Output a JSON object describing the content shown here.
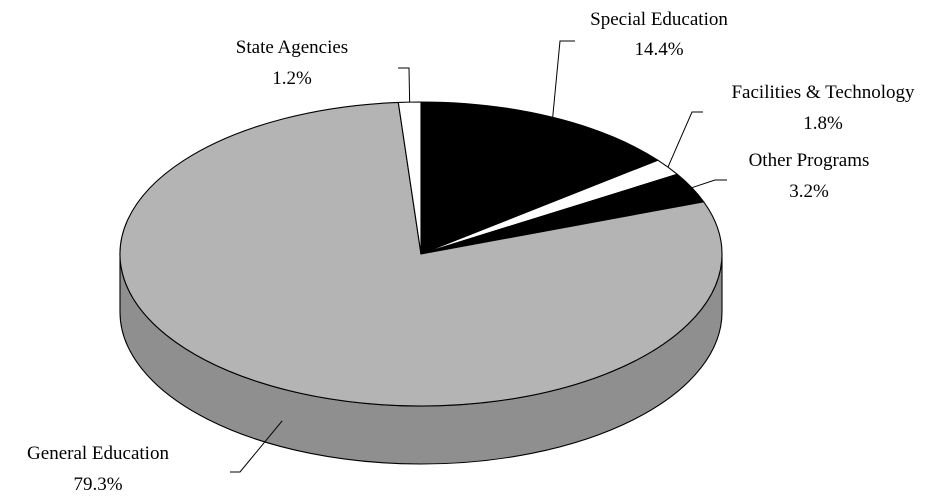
{
  "chart_data": {
    "type": "pie",
    "style": "3d",
    "title": "",
    "slices": [
      {
        "label": "Special Education",
        "value": 14.4,
        "value_label": "14.4%",
        "color": "#000000"
      },
      {
        "label": "Facilities & Technology",
        "value": 1.8,
        "value_label": "1.8%",
        "color": "#ffffff"
      },
      {
        "label": "Other Programs",
        "value": 3.2,
        "value_label": "3.2%",
        "color": "#000000"
      },
      {
        "label": "General Education",
        "value": 79.3,
        "value_label": "79.3%",
        "color": "#b4b4b4"
      },
      {
        "label": "State Agencies",
        "value": 1.2,
        "value_label": "1.2%",
        "color": "#ffffff"
      }
    ],
    "side_color": "#8f8f8f",
    "outline_color": "#000000"
  }
}
